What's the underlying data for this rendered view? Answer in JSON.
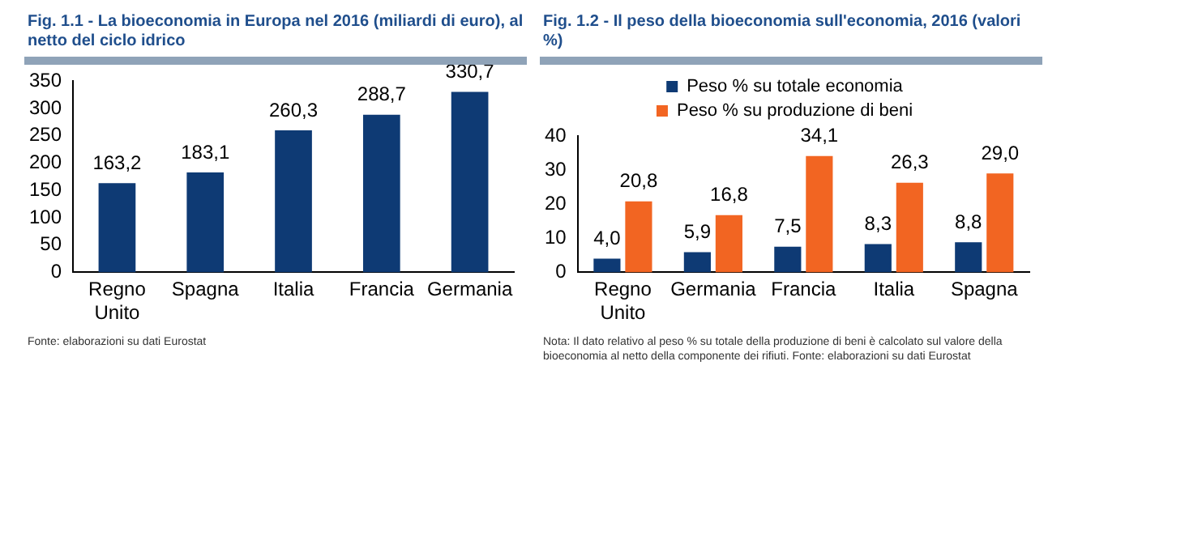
{
  "chart_data": [
    {
      "type": "bar",
      "title": "Fig. 1.1 - La bioeconomia in Europa nel 2016 (miliardi di euro), al netto del ciclo idrico",
      "categories": [
        "Regno Unito",
        "Spagna",
        "Italia",
        "Francia",
        "Germania"
      ],
      "series": [
        {
          "color": "#0e3a74",
          "values": [
            163.2,
            183.1,
            260.3,
            288.7,
            330.7
          ],
          "value_labels": [
            "163,2",
            "183,1",
            "260,3",
            "288,7",
            "330,7"
          ]
        }
      ],
      "ylim": [
        0,
        350
      ],
      "yticks": [
        0,
        50,
        100,
        150,
        200,
        250,
        300,
        350
      ],
      "legend": false,
      "annotations": [
        "Fonte: elaborazioni su dati Eurostat"
      ]
    },
    {
      "type": "bar",
      "title": "Fig. 1.2 - Il peso della bioeconomia sull'economia, 2016 (valori %)",
      "categories": [
        "Regno Unito",
        "Germania",
        "Francia",
        "Italia",
        "Spagna"
      ],
      "series": [
        {
          "name": "Peso % su totale economia",
          "color": "#0e3a74",
          "values": [
            4.0,
            5.9,
            7.5,
            8.3,
            8.8
          ],
          "value_labels": [
            "4,0",
            "5,9",
            "7,5",
            "8,3",
            "8,8"
          ]
        },
        {
          "name": "Peso % su produzione di beni",
          "color": "#f26522",
          "values": [
            20.8,
            16.8,
            34.1,
            26.3,
            29.0
          ],
          "value_labels": [
            "20,8",
            "16,8",
            "34,1",
            "26,3",
            "29,0"
          ]
        }
      ],
      "ylim": [
        0,
        40
      ],
      "yticks": [
        0,
        10,
        20,
        30,
        40
      ],
      "legend": "top",
      "annotations": [
        "Nota: Il dato relativo al peso % su totale della produzione di beni è calcolato sul valore della bioeconomia al netto della componente dei rifiuti. Fonte: elaborazioni su dati Eurostat"
      ]
    }
  ]
}
